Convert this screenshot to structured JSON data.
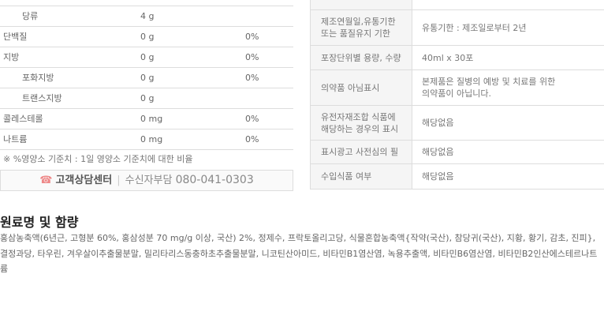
{
  "nutrition": {
    "rows": [
      {
        "name": "당류",
        "value": "4 g",
        "percent": "",
        "indent": true
      },
      {
        "name": "단백질",
        "value": "0 g",
        "percent": "0%",
        "indent": false
      },
      {
        "name": "지방",
        "value": "0 g",
        "percent": "0%",
        "indent": false
      },
      {
        "name": "포화지방",
        "value": "0 g",
        "percent": "0%",
        "indent": true
      },
      {
        "name": "트랜스지방",
        "value": "0 g",
        "percent": "",
        "indent": true
      },
      {
        "name": "콜레스테롤",
        "value": "0 mg",
        "percent": "0%",
        "indent": false
      },
      {
        "name": "나트륨",
        "value": "0 mg",
        "percent": "0%",
        "indent": false
      }
    ],
    "note": "※ %영양소 기준치 : 1일 영양소 기준치에 대한 비율"
  },
  "customer_center": {
    "icon": "phone-icon",
    "label": "고객상담센터",
    "sub": "수신자부담",
    "phone": "080-041-0303"
  },
  "info": {
    "rows": [
      {
        "label": "제조연월일,유통기한\n또는 품질유지 기한",
        "value": "유통기한 : 제조일로부터 2년"
      },
      {
        "label": "포장단위별 용량, 수량",
        "value": "40ml x 30포"
      },
      {
        "label": "의약품 아님표시",
        "value": "본제품은 질병의 예방 및 치료를 위한\n의약품이 아닙니다."
      },
      {
        "label": "유전자재조합 식품에\n해당하는 경우의 표시",
        "value": "해당없음"
      },
      {
        "label": "표시광고 사전심의 필",
        "value": "해당없음"
      },
      {
        "label": "수입식품 여부",
        "value": "해당없음"
      }
    ]
  },
  "ingredients": {
    "title": "원료명 및 함량",
    "text": "홍삼농축액(6년근, 고형분 60%, 홍삼성분 70 mg/g 이상, 국산) 2%, 정제수, 프락토올리고당, 식물혼합농축액{작약(국산), 참당귀(국산), 지황, 황기, 감초, 진피}, 결정과당, 타우린, 겨우살이추출물분말, 밀리타리스동충하초추출물분말, 니코틴산아미드, 비타민B1염산염, 녹용추출액, 비타민B6염산염, 비타민B2인산에스테르나트륨"
  }
}
